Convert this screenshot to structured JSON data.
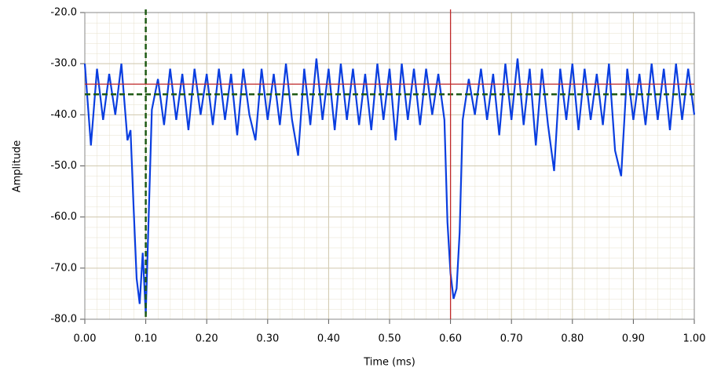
{
  "chart_data": {
    "type": "line",
    "x_label": "Time (ms)",
    "y_label": "Amplitude",
    "xlim": [
      0,
      1
    ],
    "ylim": [
      -80,
      -20
    ],
    "xticks": [
      {
        "value": 0,
        "label": "0.00"
      },
      {
        "value": 0.1,
        "label": "0.10"
      },
      {
        "value": 0.2,
        "label": "0.20"
      },
      {
        "value": 0.3,
        "label": "0.30"
      },
      {
        "value": 0.4,
        "label": "0.40"
      },
      {
        "value": 0.5,
        "label": "0.50"
      },
      {
        "value": 0.6,
        "label": "0.60"
      },
      {
        "value": 0.7,
        "label": "0.70"
      },
      {
        "value": 0.8,
        "label": "0.80"
      },
      {
        "value": 0.9,
        "label": "0.90"
      },
      {
        "value": 1,
        "label": "1.00"
      }
    ],
    "yticks": [
      {
        "value": -80,
        "label": "-80.0"
      },
      {
        "value": -70,
        "label": "-70.0"
      },
      {
        "value": -60,
        "label": "-60.0"
      },
      {
        "value": -50,
        "label": "-50.0"
      },
      {
        "value": -40,
        "label": "-40.0"
      },
      {
        "value": -30,
        "label": "-30.0"
      },
      {
        "value": -20,
        "label": "-20.0"
      }
    ],
    "grid": true,
    "series": [
      {
        "color": "#0a3ee0",
        "x": [
          0,
          0.01,
          0.02,
          0.03,
          0.04,
          0.05,
          0.06,
          0.07,
          0.075,
          0.08,
          0.085,
          0.09,
          0.095,
          0.1,
          0.11,
          0.12,
          0.13,
          0.14,
          0.15,
          0.16,
          0.17,
          0.18,
          0.19,
          0.2,
          0.21,
          0.22,
          0.23,
          0.24,
          0.25,
          0.26,
          0.27,
          0.28,
          0.29,
          0.3,
          0.31,
          0.32,
          0.33,
          0.34,
          0.35,
          0.36,
          0.37,
          0.38,
          0.39,
          0.4,
          0.41,
          0.42,
          0.43,
          0.44,
          0.45,
          0.46,
          0.47,
          0.48,
          0.49,
          0.5,
          0.51,
          0.52,
          0.53,
          0.54,
          0.55,
          0.56,
          0.57,
          0.58,
          0.59,
          0.595,
          0.6,
          0.605,
          0.61,
          0.615,
          0.62,
          0.63,
          0.64,
          0.65,
          0.66,
          0.67,
          0.68,
          0.69,
          0.7,
          0.71,
          0.72,
          0.73,
          0.74,
          0.75,
          0.76,
          0.77,
          0.78,
          0.79,
          0.8,
          0.81,
          0.82,
          0.83,
          0.84,
          0.85,
          0.86,
          0.87,
          0.88,
          0.89,
          0.9,
          0.91,
          0.92,
          0.93,
          0.94,
          0.95,
          0.96,
          0.97,
          0.98,
          0.99,
          1
        ],
        "values": [
          -30,
          -46,
          -31,
          -41,
          -32,
          -40,
          -30,
          -45,
          -43,
          -58,
          -72,
          -77,
          -67,
          -79,
          -39,
          -33,
          -42,
          -31,
          -41,
          -32,
          -43,
          -31,
          -40,
          -32,
          -42,
          -31,
          -41,
          -32,
          -44,
          -31,
          -40,
          -45,
          -31,
          -41,
          -32,
          -42,
          -30,
          -41,
          -48,
          -31,
          -42,
          -29,
          -41,
          -31,
          -43,
          -30,
          -41,
          -31,
          -42,
          -32,
          -43,
          -30,
          -41,
          -31,
          -45,
          -30,
          -41,
          -31,
          -42,
          -31,
          -40,
          -32,
          -41,
          -61,
          -71,
          -76,
          -74,
          -63,
          -41,
          -33,
          -40,
          -31,
          -41,
          -32,
          -44,
          -30,
          -41,
          -29,
          -42,
          -31,
          -46,
          -31,
          -42,
          -51,
          -31,
          -41,
          -30,
          -43,
          -31,
          -41,
          -32,
          -42,
          -30,
          -47,
          -52,
          -31,
          -41,
          -32,
          -42,
          -30,
          -41,
          -31,
          -43,
          -30,
          -41,
          -31,
          -40
        ]
      }
    ],
    "cursors": [
      {
        "x": 0.1,
        "y": -36,
        "color": "#1e5a14",
        "style": "dashed"
      },
      {
        "x": 0.6,
        "y": -34,
        "color": "#c0282a",
        "style": "solid"
      }
    ]
  }
}
